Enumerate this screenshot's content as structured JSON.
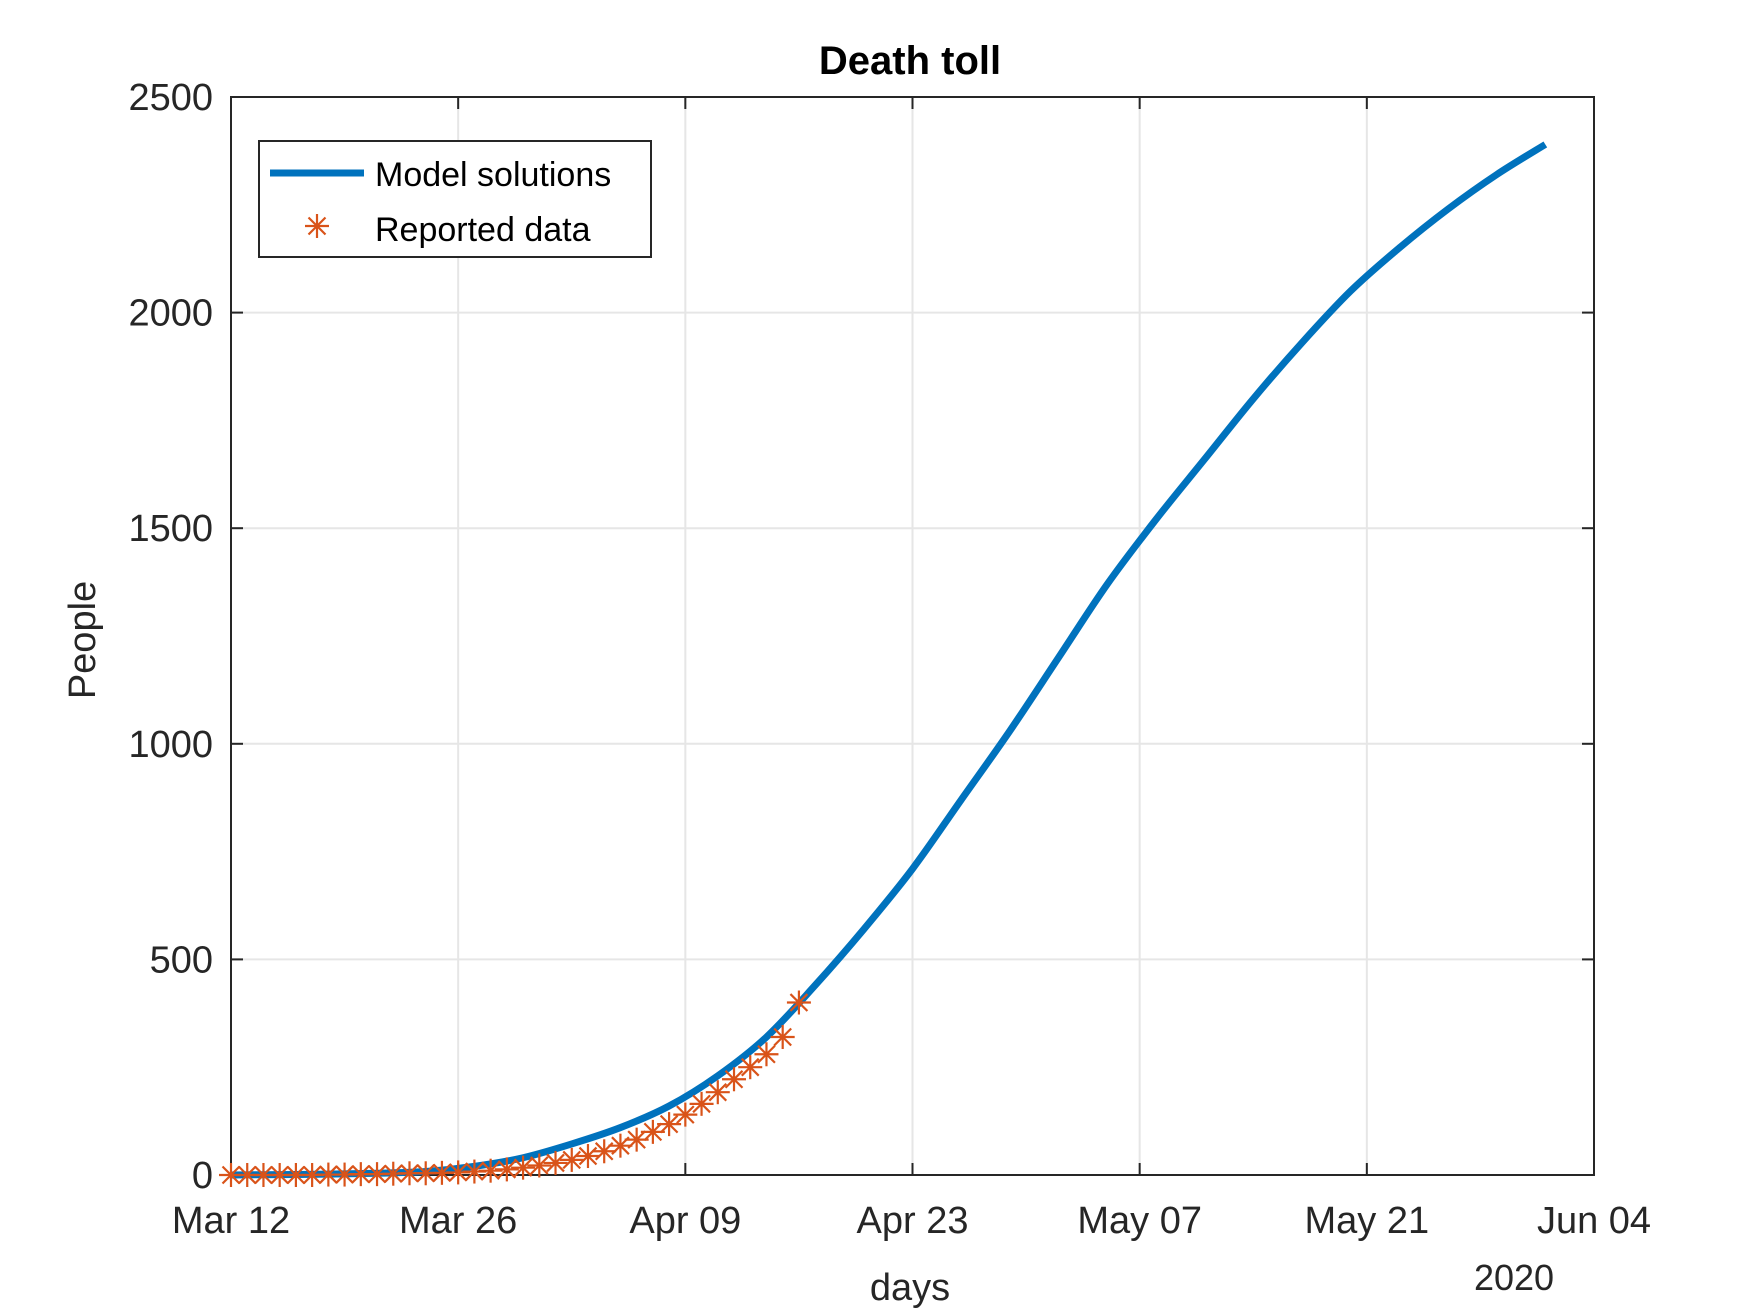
{
  "chart_data": {
    "type": "line",
    "title": "Death toll",
    "xlabel": "days",
    "ylabel": "People",
    "x_year_label": "2020",
    "xlim": [
      "2020-03-12",
      "2020-06-04"
    ],
    "ylim": [
      0,
      2500
    ],
    "x_ticks": [
      {
        "date": "2020-03-12",
        "label": "Mar 12"
      },
      {
        "date": "2020-03-26",
        "label": "Mar 26"
      },
      {
        "date": "2020-04-09",
        "label": "Apr 09"
      },
      {
        "date": "2020-04-23",
        "label": "Apr 23"
      },
      {
        "date": "2020-05-07",
        "label": "May 07"
      },
      {
        "date": "2020-05-21",
        "label": "May 21"
      },
      {
        "date": "2020-06-04",
        "label": "Jun 04"
      }
    ],
    "y_ticks": [
      0,
      500,
      1000,
      1500,
      2000,
      2500
    ],
    "grid": true,
    "legend_position": "top-left",
    "colors": {
      "model": "#0072BD",
      "reported": "#D95319",
      "axes": "#262626",
      "grid": "#e6e6e6"
    },
    "series": [
      {
        "name": "Model solutions",
        "style": "line",
        "x": [
          "2020-03-12",
          "2020-03-15",
          "2020-03-18",
          "2020-03-21",
          "2020-03-24",
          "2020-03-27",
          "2020-03-30",
          "2020-04-02",
          "2020-04-05",
          "2020-04-08",
          "2020-04-11",
          "2020-04-14",
          "2020-04-17",
          "2020-04-20",
          "2020-04-23",
          "2020-04-26",
          "2020-04-29",
          "2020-05-02",
          "2020-05-05",
          "2020-05-08",
          "2020-05-11",
          "2020-05-14",
          "2020-05-17",
          "2020-05-20",
          "2020-05-23",
          "2020-05-26",
          "2020-05-29",
          "2020-06-01"
        ],
        "y": [
          0,
          1,
          2,
          4,
          8,
          20,
          40,
          72,
          110,
          160,
          230,
          320,
          440,
          570,
          710,
          870,
          1030,
          1200,
          1370,
          1520,
          1660,
          1800,
          1930,
          2050,
          2150,
          2240,
          2320,
          2390
        ]
      },
      {
        "name": "Reported data",
        "style": "marker",
        "marker": "asterisk",
        "x": [
          "2020-03-12",
          "2020-03-13",
          "2020-03-14",
          "2020-03-15",
          "2020-03-16",
          "2020-03-17",
          "2020-03-18",
          "2020-03-19",
          "2020-03-20",
          "2020-03-21",
          "2020-03-22",
          "2020-03-23",
          "2020-03-24",
          "2020-03-25",
          "2020-03-26",
          "2020-03-27",
          "2020-03-28",
          "2020-03-29",
          "2020-03-30",
          "2020-03-31",
          "2020-04-01",
          "2020-04-02",
          "2020-04-03",
          "2020-04-04",
          "2020-04-05",
          "2020-04-06",
          "2020-04-07",
          "2020-04-08",
          "2020-04-09",
          "2020-04-10",
          "2020-04-11",
          "2020-04-12",
          "2020-04-13",
          "2020-04-14",
          "2020-04-15",
          "2020-04-16"
        ],
        "y": [
          0,
          0,
          0,
          0,
          0,
          0,
          1,
          1,
          2,
          2,
          3,
          4,
          4,
          5,
          6,
          8,
          10,
          13,
          17,
          22,
          28,
          35,
          44,
          55,
          68,
          82,
          100,
          118,
          140,
          165,
          192,
          222,
          250,
          280,
          320,
          400
        ]
      }
    ]
  }
}
